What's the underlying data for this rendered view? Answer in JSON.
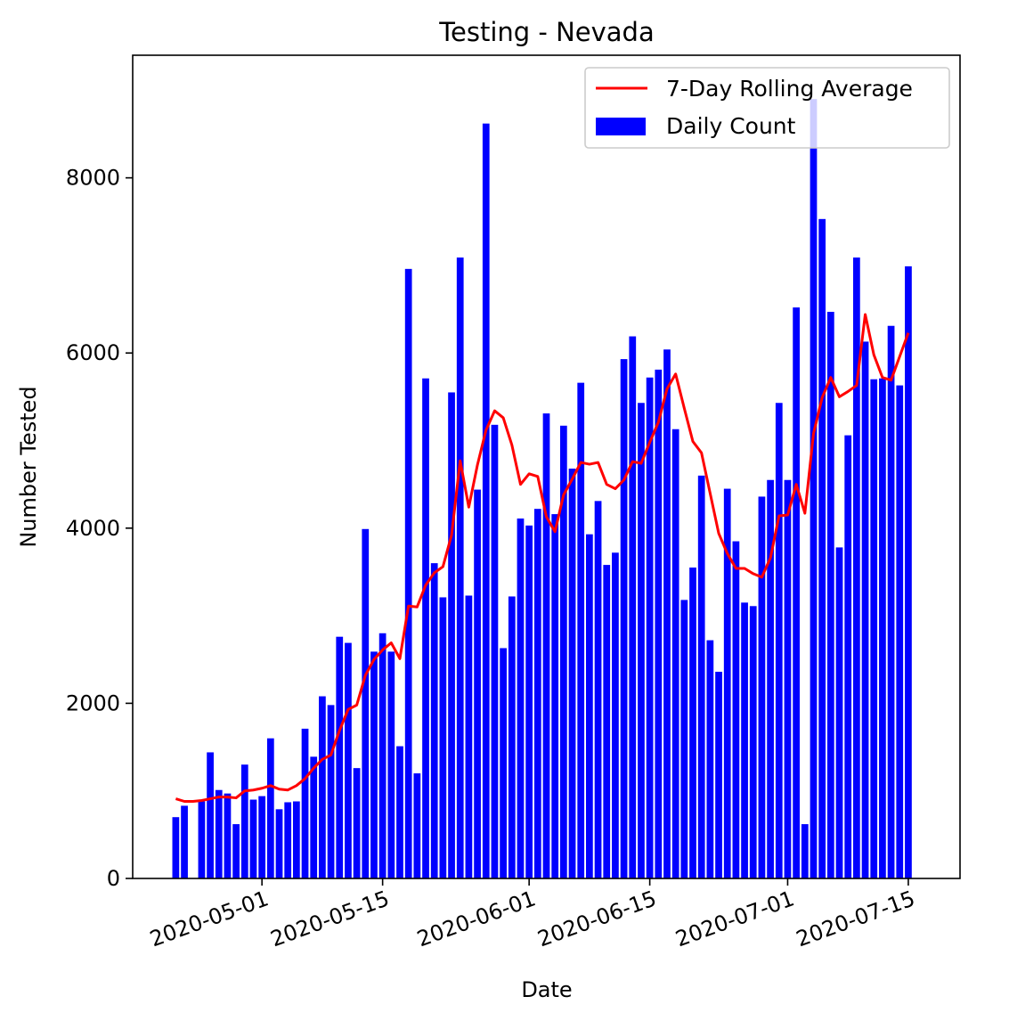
{
  "chart_data": {
    "type": "bar",
    "title": "Testing - Nevada",
    "xlabel": "Date",
    "ylabel": "Number Tested",
    "ylim": [
      0,
      9400
    ],
    "xlim": [
      "2020-04-16",
      "2020-07-21"
    ],
    "grid": false,
    "legend_position": "top-right",
    "x_ticks": [
      "2020-05-01",
      "2020-05-15",
      "2020-06-01",
      "2020-06-15",
      "2020-07-01",
      "2020-07-15"
    ],
    "y_ticks": [
      0,
      2000,
      4000,
      6000,
      8000
    ],
    "start_date": "2020-04-21",
    "series": [
      {
        "name": "Daily Count",
        "kind": "bar",
        "color": "#0000ff",
        "values": [
          700,
          830,
          null,
          880,
          1440,
          1010,
          970,
          620,
          1300,
          900,
          940,
          1600,
          790,
          870,
          880,
          1710,
          1390,
          2080,
          1980,
          2760,
          2690,
          1260,
          3990,
          2590,
          2800,
          2590,
          1510,
          6960,
          1200,
          5710,
          3600,
          3210,
          5550,
          7090,
          3230,
          4440,
          8620,
          5180,
          2630,
          3220,
          4110,
          4030,
          4220,
          5310,
          4160,
          5170,
          4680,
          5660,
          3930,
          4310,
          3580,
          3720,
          5930,
          6190,
          5430,
          5720,
          5810,
          6040,
          5130,
          3180,
          3550,
          4600,
          2720,
          2360,
          4450,
          3850,
          3150,
          3110,
          4360,
          4550,
          5430,
          4550,
          6520,
          620,
          8900,
          7530,
          6470,
          3780,
          5060,
          7090,
          6130,
          5700,
          5710,
          6310,
          5630,
          6990
        ]
      },
      {
        "name": "7-Day Rolling Average",
        "kind": "line",
        "color": "#ff0000",
        "values": [
          910,
          880,
          880,
          890,
          910,
          930,
          930,
          920,
          1000,
          1010,
          1030,
          1060,
          1020,
          1010,
          1060,
          1140,
          1260,
          1360,
          1410,
          1690,
          1930,
          1980,
          2320,
          2500,
          2610,
          2690,
          2510,
          3110,
          3100,
          3350,
          3490,
          3560,
          3920,
          4770,
          4240,
          4720,
          5120,
          5340,
          5260,
          4950,
          4500,
          4620,
          4590,
          4130,
          3960,
          4380,
          4560,
          4750,
          4730,
          4750,
          4500,
          4450,
          4550,
          4760,
          4740,
          4980,
          5210,
          5590,
          5760,
          5370,
          4990,
          4860,
          4400,
          3940,
          3710,
          3540,
          3540,
          3480,
          3440,
          3660,
          4140,
          4150,
          4500,
          4170,
          5080,
          5490,
          5720,
          5500,
          5560,
          5630,
          6440,
          5980,
          5720,
          5690,
          5960,
          6230
        ]
      }
    ]
  }
}
